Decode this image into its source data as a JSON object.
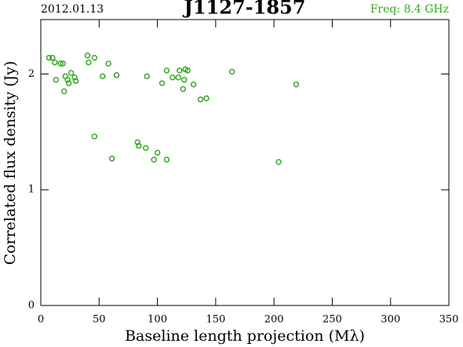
{
  "chart_data": {
    "type": "scatter",
    "date": "2012.01.13",
    "title": "J1127-1857",
    "subtitle": "Freq: 8.4 GHz",
    "xlabel": "Baseline length projection (Mλ)",
    "ylabel": "Correlated flux density (Jy)",
    "color": "#33aa22",
    "x": [
      7,
      10,
      12,
      17,
      19,
      13,
      20,
      21,
      23,
      24,
      26,
      29,
      30,
      40,
      41,
      46,
      53,
      58,
      65,
      46,
      61,
      83,
      84,
      90,
      91,
      97,
      100,
      108,
      104,
      108,
      113,
      118,
      119,
      123,
      124,
      126,
      122,
      131,
      137,
      142,
      164,
      204,
      219
    ],
    "values": [
      2.14,
      2.14,
      2.1,
      2.09,
      2.09,
      1.95,
      1.85,
      1.98,
      1.95,
      1.92,
      2.01,
      1.97,
      1.94,
      2.16,
      2.1,
      2.14,
      1.98,
      2.09,
      1.99,
      1.46,
      1.27,
      1.41,
      1.38,
      1.36,
      1.98,
      1.26,
      1.32,
      1.26,
      1.92,
      2.03,
      1.97,
      1.97,
      2.03,
      1.95,
      2.04,
      2.03,
      1.87,
      1.91,
      1.78,
      1.79,
      2.02,
      1.24,
      1.91
    ],
    "xlim": [
      0,
      350
    ],
    "xticks": [
      0,
      50,
      100,
      150,
      200,
      250,
      300,
      350
    ],
    "ylim": [
      0,
      2.47
    ],
    "yticks": [
      0,
      1,
      2
    ]
  }
}
